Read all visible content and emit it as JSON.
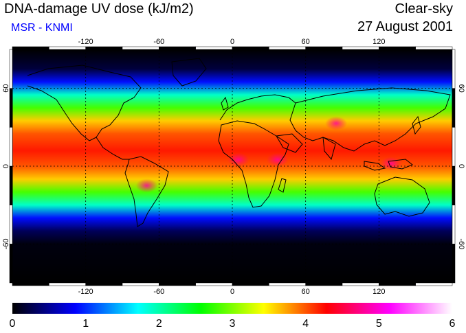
{
  "header": {
    "title": "DNA-damage UV dose (kJ/m2)",
    "subtitle": "MSR - KNMI",
    "condition": "Clear-sky",
    "date": "27 August 2001"
  },
  "map": {
    "lon_range": [
      -180,
      180
    ],
    "lat_range": [
      -90,
      90
    ],
    "grid_lons": [
      -120,
      -60,
      0,
      60,
      120
    ],
    "grid_lats": [
      60,
      0,
      -60
    ],
    "lon_tick_labels": [
      "-120",
      "-60",
      "0",
      "60",
      "120"
    ],
    "lat_tick_labels": [
      "60",
      "0",
      "-60"
    ],
    "grid_style": "dotted",
    "frame_style": "alternating black/white bars"
  },
  "colorbar": {
    "min": 0,
    "max": 6,
    "tick_labels": [
      "0",
      "1",
      "2",
      "3",
      "4",
      "5",
      "6"
    ],
    "colors": [
      "#000000",
      "#0000ff",
      "#00ffff",
      "#00ff00",
      "#ffff00",
      "#ff0000",
      "#ff00ff",
      "#ffffff"
    ]
  },
  "data_bands": [
    {
      "lat": 90,
      "value": 0.0
    },
    {
      "lat": 75,
      "value": 0.2
    },
    {
      "lat": 65,
      "value": 0.9
    },
    {
      "lat": 55,
      "value": 1.9
    },
    {
      "lat": 45,
      "value": 2.8
    },
    {
      "lat": 35,
      "value": 3.6
    },
    {
      "lat": 25,
      "value": 4.0
    },
    {
      "lat": 12,
      "value": 4.2
    },
    {
      "lat": 0,
      "value": 4.0
    },
    {
      "lat": -10,
      "value": 3.6
    },
    {
      "lat": -20,
      "value": 2.8
    },
    {
      "lat": -30,
      "value": 1.9
    },
    {
      "lat": -40,
      "value": 0.9
    },
    {
      "lat": -50,
      "value": 0.3
    },
    {
      "lat": -60,
      "value": 0.05
    },
    {
      "lat": -90,
      "value": 0.0
    }
  ],
  "hotspots": [
    {
      "lon": 5,
      "lat": 5,
      "value": 4.8
    },
    {
      "lon": 37,
      "lat": 5,
      "value": 5.0
    },
    {
      "lon": -70,
      "lat": -15,
      "value": 5.2
    },
    {
      "lon": 85,
      "lat": 33,
      "value": 5.3
    },
    {
      "lon": 130,
      "lat": 2,
      "value": 4.8
    }
  ]
}
